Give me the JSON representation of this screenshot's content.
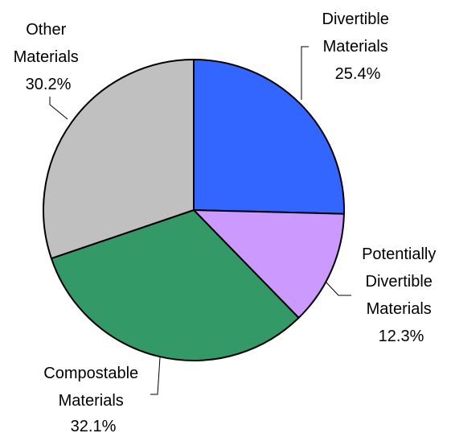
{
  "chart_data": {
    "type": "pie",
    "title": "",
    "slices": [
      {
        "label_lines": [
          "Divertible",
          "Materials"
        ],
        "percent_label": "25.4%",
        "value": 25.4,
        "color": "#3366FF"
      },
      {
        "label_lines": [
          "Potentially",
          "Divertible",
          "Materials"
        ],
        "percent_label": "12.3%",
        "value": 12.3,
        "color": "#CC99FF"
      },
      {
        "label_lines": [
          "Compostable",
          "Materials"
        ],
        "percent_label": "32.1%",
        "value": 32.1,
        "color": "#339966"
      },
      {
        "label_lines": [
          "Other",
          "Materials"
        ],
        "percent_label": "30.2%",
        "value": 30.2,
        "color": "#C0C0C0"
      }
    ],
    "start_direction": "top",
    "order": "clockwise",
    "legend": "none"
  }
}
